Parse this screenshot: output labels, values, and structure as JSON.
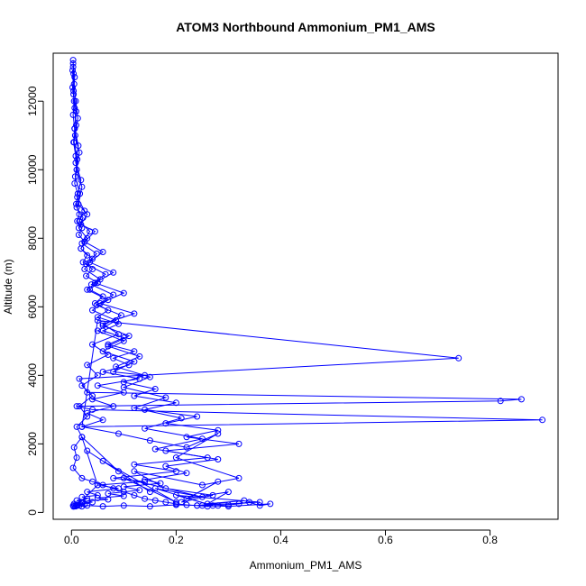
{
  "chart_data": {
    "type": "scatter",
    "title": "ATOM3 Northbound Ammonium_PM1_AMS",
    "xlabel": "Ammonium_PM1_AMS",
    "ylabel": "Altitude (m)",
    "xlim": [
      -0.035,
      0.93
    ],
    "ylim": [
      -200,
      13400
    ],
    "xticks": [
      0.0,
      0.2,
      0.4,
      0.6,
      0.8
    ],
    "xtick_labels": [
      "0.0",
      "0.2",
      "0.4",
      "0.6",
      "0.8"
    ],
    "yticks": [
      0,
      2000,
      4000,
      6000,
      8000,
      10000,
      12000
    ],
    "ytick_labels": [
      "0",
      "2000",
      "4000",
      "6000",
      "8000",
      "10000",
      "12000"
    ],
    "grid": false,
    "legend": "none",
    "markers": "open circles joined by lines",
    "color": "#0000ff",
    "series": [
      {
        "x": [
          0.003,
          0.004,
          0.002,
          0.005,
          0.003,
          0.006,
          0.004,
          0.008,
          0.01,
          0.006,
          0.012,
          0.009,
          0.015,
          0.011,
          0.02,
          0.014,
          0.025,
          0.018,
          0.03,
          0.022,
          0.04,
          0.028,
          0.05,
          0.035,
          0.06,
          0.045,
          0.07,
          0.05,
          0.09,
          0.06,
          0.1,
          0.07,
          0.12,
          0.08,
          0.11,
          0.06,
          0.13,
          0.05,
          0.1,
          0.04,
          0.08,
          0.03,
          0.06,
          0.02,
          0.05,
          0.74,
          0.015,
          0.03,
          0.86,
          0.82,
          0.01,
          0.04,
          0.9,
          0.02,
          0.09,
          0.15,
          0.22,
          0.28,
          0.2,
          0.32,
          0.25,
          0.12,
          0.18,
          0.27,
          0.21,
          0.28,
          0.22,
          0.3,
          0.26,
          0.33,
          0.24,
          0.36,
          0.2,
          0.27,
          0.16,
          0.25,
          0.1,
          0.2,
          0.06,
          0.15,
          0.03,
          0.09,
          0.02,
          0.05,
          0.01
        ],
        "y": [
          13200,
          12800,
          12400,
          12000,
          11600,
          11200,
          10800,
          10400,
          10000,
          9600,
          9300,
          9000,
          8700,
          8500,
          8300,
          8100,
          7900,
          7700,
          7500,
          7300,
          7100,
          6900,
          6700,
          6500,
          6300,
          6100,
          5900,
          5700,
          5500,
          5300,
          5100,
          4900,
          4700,
          4500,
          4300,
          4100,
          3900,
          3700,
          3500,
          3300,
          3100,
          2900,
          2700,
          2500,
          5600,
          4500,
          3900,
          3500,
          3300,
          3250,
          3100,
          3000,
          2700,
          2500,
          2300,
          2100,
          1900,
          2300,
          1600,
          1000,
          800,
          1200,
          700,
          500,
          300,
          900,
          400,
          600,
          250,
          350,
          200,
          300,
          500,
          200,
          700,
          450,
          1000,
          300,
          1500,
          600,
          1800,
          1200,
          2200,
          800,
          200
        ]
      },
      {
        "x": [
          0.003,
          0.005,
          0.008,
          0.012,
          0.007,
          0.015,
          0.01,
          0.02,
          0.013,
          0.03,
          0.018,
          0.045,
          0.025,
          0.06,
          0.035,
          0.08,
          0.045,
          0.1,
          0.055,
          0.12,
          0.06,
          0.09,
          0.04,
          0.07,
          0.03,
          0.05,
          0.02,
          0.04,
          0.015,
          0.03,
          0.01,
          0.02,
          0.005,
          0.01,
          0.003,
          0.02,
          0.04,
          0.06,
          0.08,
          0.1,
          0.12,
          0.14,
          0.16,
          0.18,
          0.2,
          0.22,
          0.24,
          0.26,
          0.28,
          0.3,
          0.32,
          0.34,
          0.36,
          0.38,
          0.3,
          0.25,
          0.2,
          0.15,
          0.1,
          0.06,
          0.03,
          0.02,
          0.01
        ],
        "y": [
          13000,
          12500,
          12000,
          11500,
          11000,
          10500,
          10000,
          9500,
          9000,
          8700,
          8400,
          8200,
          7900,
          7600,
          7300,
          7000,
          6700,
          6400,
          6100,
          5800,
          5500,
          5200,
          4900,
          4600,
          4300,
          4000,
          3700,
          3400,
          3100,
          2800,
          2500,
          2200,
          1900,
          1600,
          1300,
          1000,
          900,
          800,
          700,
          600,
          500,
          400,
          350,
          300,
          250,
          220,
          200,
          180,
          200,
          220,
          250,
          300,
          200,
          250,
          180,
          200,
          220,
          180,
          200,
          180,
          200,
          180,
          200
        ]
      },
      {
        "x": [
          0.002,
          0.004,
          0.006,
          0.009,
          0.005,
          0.011,
          0.007,
          0.016,
          0.01,
          0.022,
          0.014,
          0.03,
          0.018,
          0.04,
          0.025,
          0.055,
          0.03,
          0.07,
          0.04,
          0.085,
          0.05,
          0.1,
          0.06,
          0.12,
          0.08,
          0.14,
          0.1,
          0.16,
          0.12,
          0.2,
          0.14,
          0.24,
          0.18,
          0.28,
          0.22,
          0.32,
          0.18,
          0.26,
          0.12,
          0.2,
          0.08,
          0.14,
          0.05,
          0.09,
          0.03,
          0.05,
          0.02,
          0.03,
          0.01,
          0.02,
          0.005,
          0.01,
          0.003
        ],
        "y": [
          12900,
          12300,
          11800,
          11300,
          10800,
          10300,
          9800,
          9300,
          8900,
          8600,
          8300,
          8000,
          7700,
          7400,
          7100,
          6800,
          6500,
          6200,
          5900,
          5600,
          5300,
          5000,
          4700,
          4400,
          4100,
          4000,
          3800,
          3600,
          3400,
          3200,
          3000,
          2800,
          2600,
          2400,
          2200,
          2000,
          1800,
          1600,
          1400,
          1200,
          1000,
          900,
          800,
          700,
          600,
          500,
          450,
          400,
          350,
          300,
          250,
          220,
          200
        ]
      },
      {
        "x": [
          0.003,
          0.006,
          0.004,
          0.009,
          0.006,
          0.013,
          0.008,
          0.018,
          0.011,
          0.025,
          0.015,
          0.035,
          0.02,
          0.048,
          0.028,
          0.065,
          0.038,
          0.08,
          0.048,
          0.095,
          0.06,
          0.11,
          0.07,
          0.13,
          0.085,
          0.15,
          0.1,
          0.18,
          0.12,
          0.21,
          0.14,
          0.25,
          0.16,
          0.28,
          0.18,
          0.22,
          0.14,
          0.17,
          0.1,
          0.13,
          0.07,
          0.1,
          0.05,
          0.07,
          0.03,
          0.04,
          0.02,
          0.025,
          0.012,
          0.015,
          0.006,
          0.008,
          0.004
        ],
        "y": [
          13100,
          12700,
          12200,
          11700,
          11200,
          10700,
          10200,
          9700,
          9200,
          8800,
          8500,
          8200,
          7850,
          7550,
          7250,
          6950,
          6650,
          6350,
          6050,
          5750,
          5450,
          5150,
          4850,
          4550,
          4250,
          3950,
          3650,
          3350,
          3050,
          2750,
          2450,
          2150,
          1850,
          1550,
          1350,
          1150,
          950,
          850,
          750,
          650,
          550,
          480,
          420,
          380,
          340,
          300,
          270,
          240,
          220,
          200,
          190,
          180,
          170
        ]
      }
    ]
  }
}
